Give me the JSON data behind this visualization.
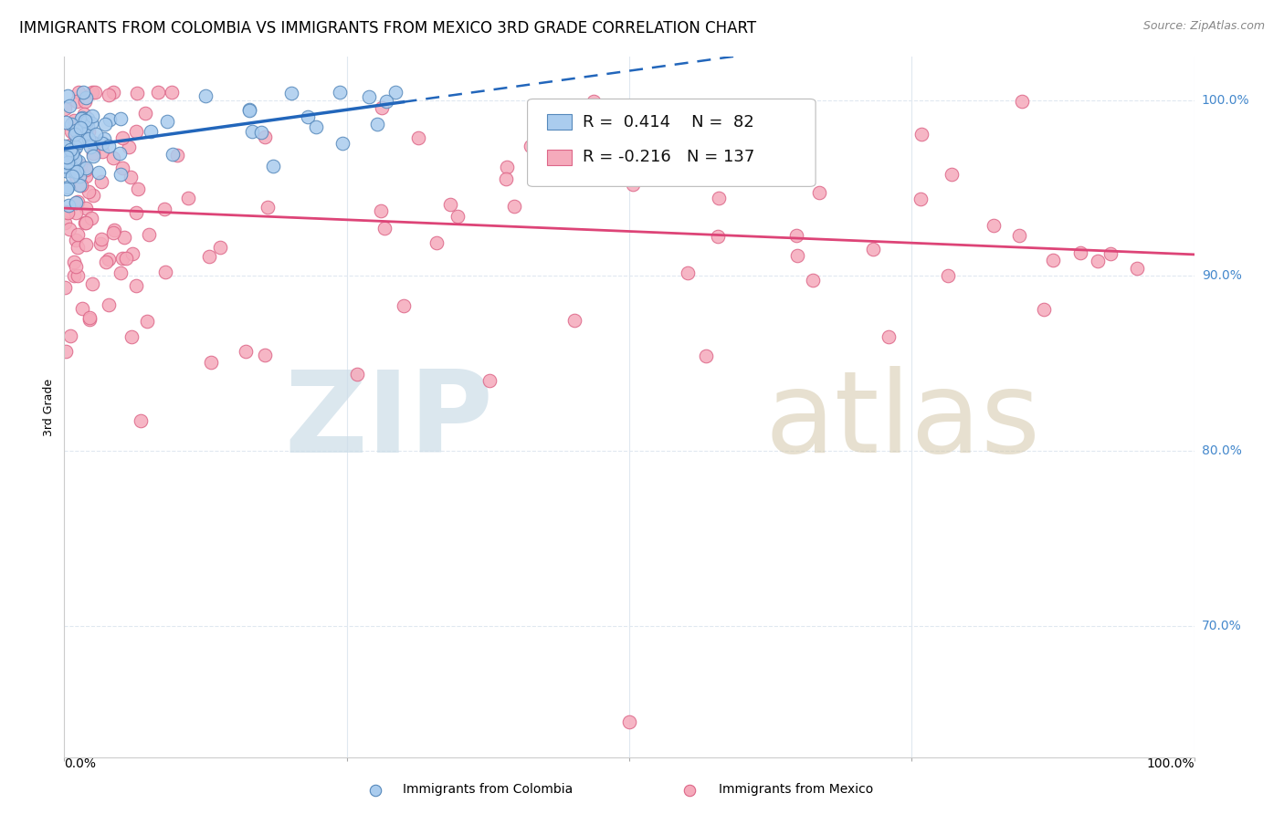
{
  "title": "IMMIGRANTS FROM COLOMBIA VS IMMIGRANTS FROM MEXICO 3RD GRADE CORRELATION CHART",
  "source": "Source: ZipAtlas.com",
  "ylabel": "3rd Grade",
  "xlim": [
    0.0,
    1.0
  ],
  "ylim": [
    0.625,
    1.025
  ],
  "yticks": [
    0.7,
    0.8,
    0.9,
    1.0
  ],
  "ytick_labels": [
    "70.0%",
    "80.0%",
    "90.0%",
    "100.0%"
  ],
  "colombia_color": "#aaccee",
  "colombia_edge": "#5588bb",
  "mexico_color": "#f5aabb",
  "mexico_edge": "#dd6688",
  "trend_colombia_color": "#2266bb",
  "trend_mexico_color": "#dd4477",
  "R_colombia": 0.414,
  "N_colombia": 82,
  "R_mexico": -0.216,
  "N_mexico": 137,
  "watermark_zip_color": "#ccdde8",
  "watermark_atlas_color": "#d4c8aa",
  "background_color": "#ffffff",
  "grid_color": "#e0e8f0",
  "title_fontsize": 12,
  "source_fontsize": 9,
  "axis_label_fontsize": 9,
  "tick_label_fontsize": 10,
  "legend_fontsize": 13,
  "right_tick_color": "#4488cc",
  "legend_r_color": "#4488cc"
}
